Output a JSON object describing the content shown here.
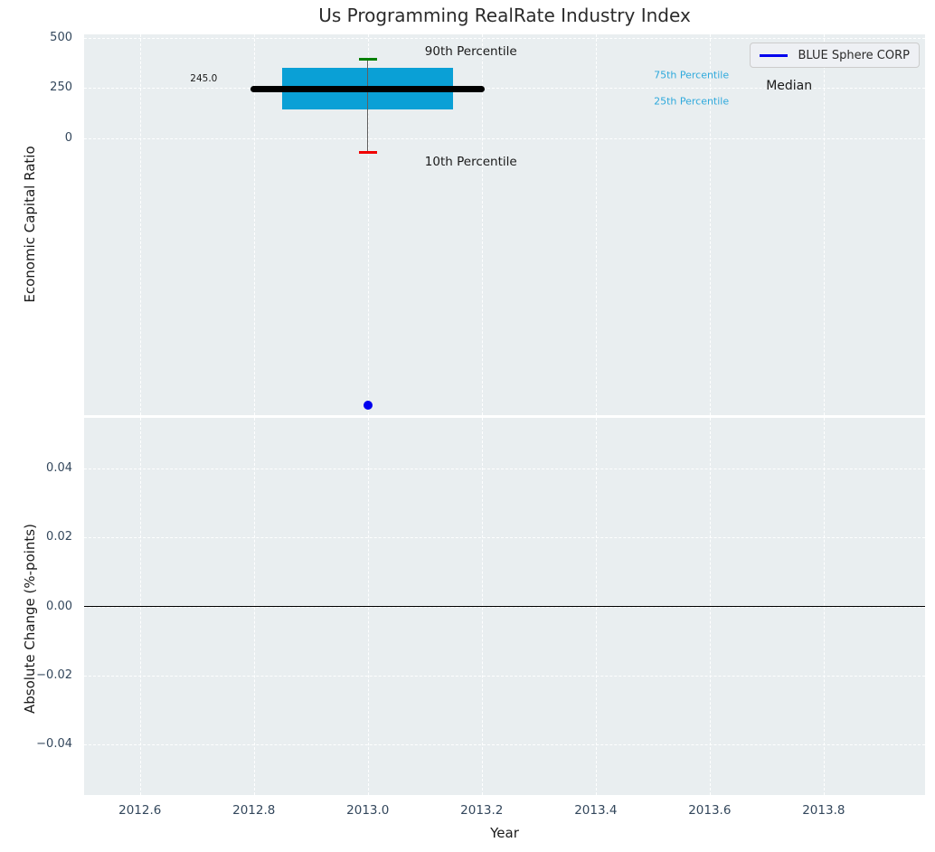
{
  "figure": {
    "title": "Us Programming RealRate Industry Index",
    "colors": {
      "axes_background": "#e9eef0",
      "grid": "#ffffff",
      "tick_label": "#33475c",
      "title": "#2b2b2b",
      "axis_label": "#1a1a1a",
      "box_fill": "#0aa0d6",
      "percentile_text": "#2fa9dc",
      "median_line": "#000000",
      "whisker": "#606060",
      "cap_90th": "#008000",
      "cap_10th": "#f00000",
      "company_point": "#0000ee",
      "zero_line": "#000000",
      "legend_bg": "#eef0f4",
      "legend_border": "#cccccc"
    }
  },
  "chart_data": [
    {
      "type": "box",
      "panel": "top",
      "title": "Us Programming RealRate Industry Index",
      "ylabel": "Economic Capital Ratio",
      "xlim": [
        2012.502,
        2013.978
      ],
      "ylim": [
        -1380,
        516
      ],
      "grid": true,
      "yticks": [
        {
          "value": 500,
          "label": "500"
        },
        {
          "value": 250,
          "label": "250"
        },
        {
          "value": 0,
          "label": "0"
        }
      ],
      "xticks": [
        {
          "value": 2012.6,
          "label": ""
        },
        {
          "value": 2012.8,
          "label": ""
        },
        {
          "value": 2013.0,
          "label": ""
        },
        {
          "value": 2013.2,
          "label": ""
        },
        {
          "value": 2013.4,
          "label": ""
        },
        {
          "value": 2013.6,
          "label": ""
        },
        {
          "value": 2013.8,
          "label": ""
        }
      ],
      "box": {
        "x": 2013.0,
        "median": 245.0,
        "p75": 349,
        "p25": 142,
        "p90": 394,
        "p10": -70,
        "box_half_width_years": 0.15,
        "median_half_width_years": 0.2,
        "median_value_label": "245.0"
      },
      "company_point": {
        "name": "BLUE Sphere CORP",
        "x": 2013.0,
        "y": -1330
      },
      "legend": {
        "position": "upper right",
        "entries": [
          {
            "label": "BLUE Sphere CORP",
            "color": "#0000ee"
          }
        ]
      },
      "annotations": [
        {
          "text": "90th Percentile",
          "x": 2013.1,
          "y": 430,
          "color": "#1a1a1a",
          "size": 13.5,
          "align": "left"
        },
        {
          "text": "10th Percentile",
          "x": 2013.1,
          "y": -119,
          "color": "#1a1a1a",
          "size": 13.5,
          "align": "left"
        },
        {
          "text": "75th Percentile",
          "x": 2013.502,
          "y": 313,
          "color": "#2fa9dc",
          "size": 11,
          "align": "left"
        },
        {
          "text": "25th Percentile",
          "x": 2013.502,
          "y": 183,
          "color": "#2fa9dc",
          "size": 11,
          "align": "left"
        },
        {
          "text": "Median",
          "x": 2013.699,
          "y": 259,
          "color": "#1a1a1a",
          "size": 14,
          "align": "left"
        },
        {
          "text": "245.0",
          "x": 2012.712,
          "y": 295,
          "color": "#1a1a1a",
          "size": 10.5,
          "align": "center"
        }
      ]
    },
    {
      "type": "line",
      "panel": "bottom",
      "ylabel": "Absolute Change (%-points)",
      "xlabel": "Year",
      "xlim": [
        2012.502,
        2013.978
      ],
      "ylim": [
        -0.0547,
        0.0547
      ],
      "grid": true,
      "zero_line": 0,
      "series": [],
      "yticks": [
        {
          "value": 0.04,
          "label": "0.04"
        },
        {
          "value": 0.02,
          "label": "0.02"
        },
        {
          "value": 0.0,
          "label": "0.00"
        },
        {
          "value": -0.02,
          "label": "−0.02"
        },
        {
          "value": -0.04,
          "label": "−0.04"
        }
      ],
      "xticks": [
        {
          "value": 2012.6,
          "label": "2012.6"
        },
        {
          "value": 2012.8,
          "label": "2012.8"
        },
        {
          "value": 2013.0,
          "label": "2013.0"
        },
        {
          "value": 2013.2,
          "label": "2013.2"
        },
        {
          "value": 2013.4,
          "label": "2013.4"
        },
        {
          "value": 2013.6,
          "label": "2013.6"
        },
        {
          "value": 2013.8,
          "label": "2013.8"
        }
      ]
    }
  ]
}
